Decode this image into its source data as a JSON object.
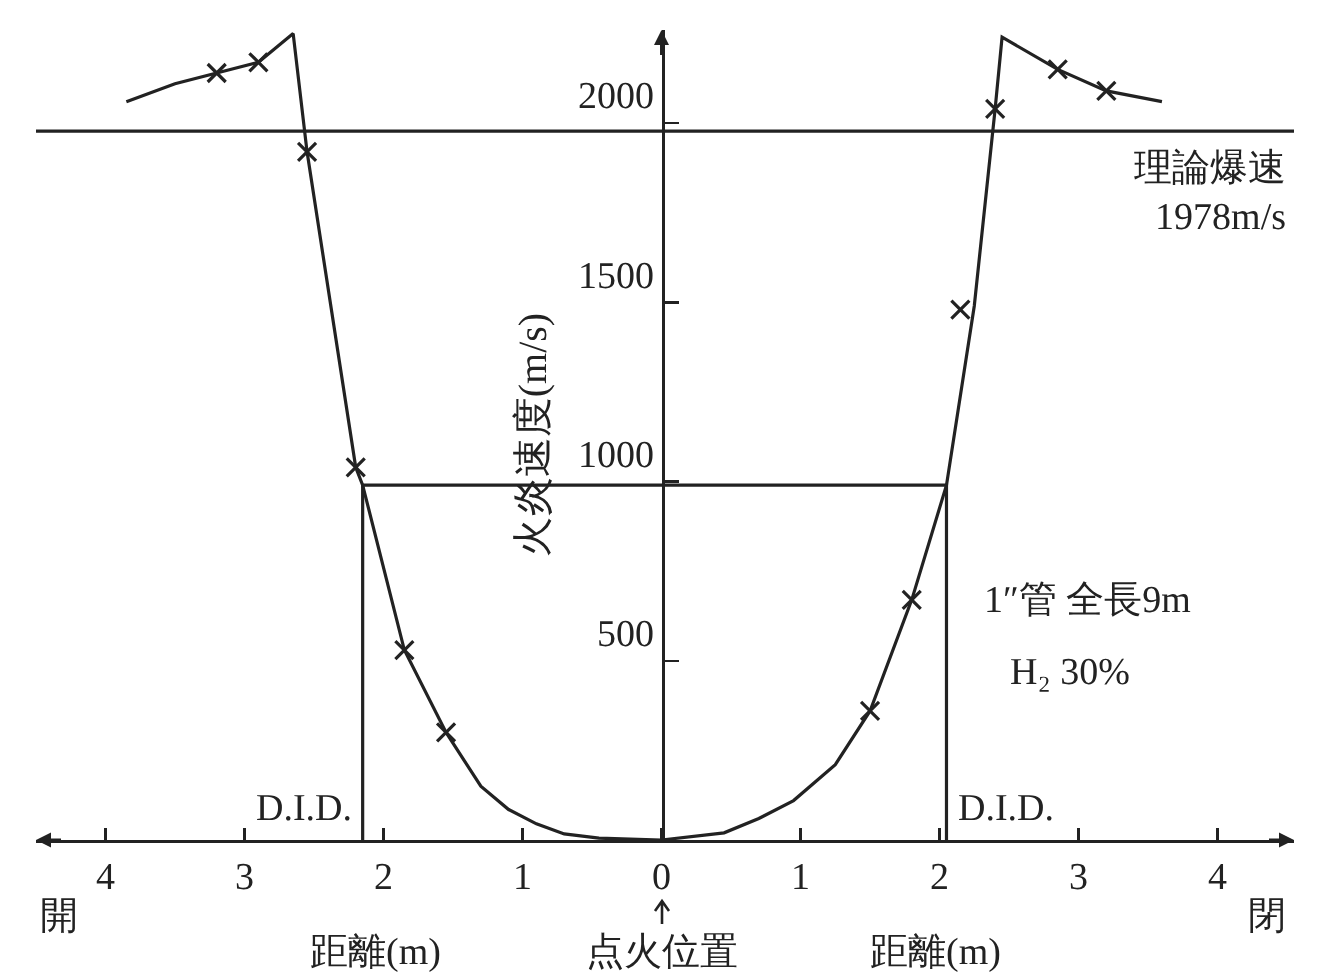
{
  "chart_data": {
    "type": "line",
    "xlabel": "距離(m)",
    "ylabel": "火炎速度(m/s)",
    "annotations": [
      {
        "text": "D.I.D.",
        "x": -2.15,
        "y": 0
      },
      {
        "text": "D.I.D.",
        "x": 2.05,
        "y": 0
      },
      {
        "text": "点火位置",
        "x": 0,
        "y": 0
      },
      "1″管 全長9m",
      "H₂ 30%",
      "開",
      "閉"
    ],
    "series": [
      {
        "color": "#222222",
        "x": [
          -3.85,
          -3.5,
          -3.2,
          -2.9,
          -2.65,
          -2.55,
          -2.2,
          -2.15,
          -1.85,
          -1.55,
          -1.3,
          -1.1,
          -0.9,
          -0.7,
          -0.45,
          0,
          0.45,
          0.7,
          0.95,
          1.25,
          1.5,
          1.8,
          2.05,
          2.25,
          2.4,
          2.45,
          2.85,
          3.2,
          3.6
        ],
        "values": [
          2060,
          2110,
          2140,
          2170,
          2250,
          1920,
          1040,
          990,
          530,
          300,
          150,
          85,
          45,
          17,
          5,
          0,
          20,
          60,
          110,
          210,
          360,
          670,
          990,
          1490,
          2040,
          2240,
          2150,
          2090,
          2060
        ]
      },
      {
        "type": "scatter",
        "marker": "cross",
        "color": "#222222",
        "x": [
          -3.2,
          -2.9,
          -2.55,
          -2.2,
          -1.85,
          -1.55,
          1.5,
          1.8,
          2.15,
          2.4,
          2.85,
          3.2
        ],
        "values": [
          2140,
          2170,
          1920,
          1040,
          530,
          300,
          360,
          670,
          1480,
          2040,
          2150,
          2090
        ]
      },
      {
        "color": "#222222",
        "x": [
          -2.15,
          -2.15,
          2.05,
          2.05
        ],
        "values": [
          0,
          990,
          990,
          0
        ]
      }
    ],
    "xlim": [
      -4.5,
      4.55
    ],
    "xticks": [
      {
        "value": -4,
        "label": "4"
      },
      {
        "value": -3,
        "label": "3"
      },
      {
        "value": -2,
        "label": "2"
      },
      {
        "value": -1,
        "label": "1"
      },
      0,
      1,
      2,
      3,
      4
    ],
    "ylim": [
      0,
      2260
    ],
    "yticks": [
      500,
      1000,
      1500,
      2000
    ],
    "ref_lines": [
      {
        "axis": "y",
        "value": 1978,
        "label": "理論爆速\n1978m/s",
        "color": "#222222"
      }
    ],
    "grid": false
  }
}
